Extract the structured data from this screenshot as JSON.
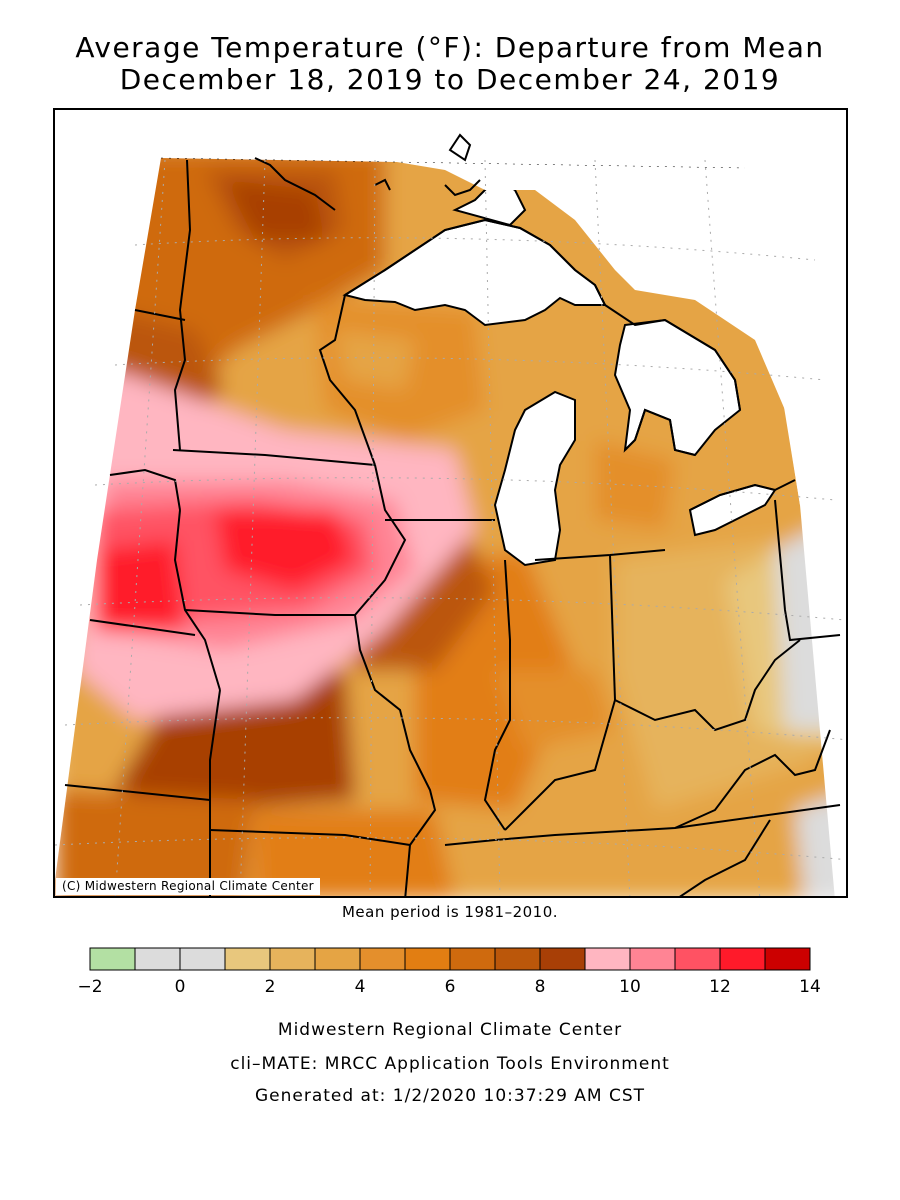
{
  "title": {
    "line1": "Average Temperature (°F): Departure from Mean",
    "line2": "December 18, 2019 to December 24, 2019"
  },
  "map": {
    "copyright": "(C) Midwestern Regional Climate Center",
    "mean_period": "Mean period is 1981–2010."
  },
  "legend": {
    "bins": [
      {
        "from": -2,
        "to": -1,
        "color": "#b3e0a3"
      },
      {
        "from": -1,
        "to": 0,
        "color": "#dcdcdc"
      },
      {
        "from": 0,
        "to": 1,
        "color": "#dcdcdc"
      },
      {
        "from": 1,
        "to": 2,
        "color": "#e8c77d"
      },
      {
        "from": 2,
        "to": 3,
        "color": "#e6b35c"
      },
      {
        "from": 3,
        "to": 4,
        "color": "#e5a444"
      },
      {
        "from": 4,
        "to": 5,
        "color": "#e48f2c"
      },
      {
        "from": 5,
        "to": 6,
        "color": "#e27e12"
      },
      {
        "from": 6,
        "to": 7,
        "color": "#cf6a0e"
      },
      {
        "from": 7,
        "to": 8,
        "color": "#bb570a"
      },
      {
        "from": 8,
        "to": 9,
        "color": "#a83f06"
      },
      {
        "from": 9,
        "to": 10,
        "color": "#ffb6c1"
      },
      {
        "from": 10,
        "to": 11,
        "color": "#ff8494"
      },
      {
        "from": 11,
        "to": 12,
        "color": "#ff5263"
      },
      {
        "from": 12,
        "to": 13,
        "color": "#ff1a2a"
      },
      {
        "from": 13,
        "to": 14,
        "color": "#cc0000"
      }
    ],
    "tick_labels": [
      "−2",
      "0",
      "2",
      "4",
      "6",
      "8",
      "10",
      "12",
      "14"
    ]
  },
  "footer": {
    "line1": "Midwestern Regional Climate Center",
    "line2": "cli–MATE: MRCC Application Tools Environment",
    "line3": "Generated at: 1/2/2020 10:37:29 AM CST"
  }
}
